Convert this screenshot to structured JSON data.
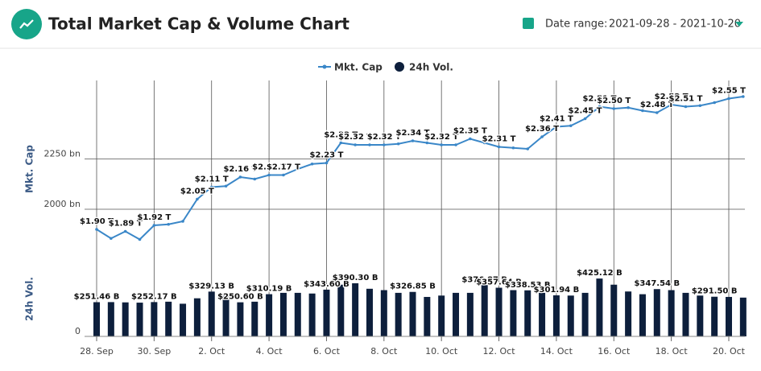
{
  "header": {
    "title": "Total Market Cap & Volume Chart",
    "date_range_label": "Date range:",
    "date_range": "2021-09-28 - 2021-10-20"
  },
  "chart_data": {
    "type": "line-bar",
    "y_label": "Mkt. Cap",
    "y2_label": "24h Vol.",
    "categories": [
      "28. Sep",
      null,
      null,
      null,
      "30. Sep",
      null,
      null,
      null,
      "2. Oct",
      null,
      null,
      null,
      "4. Oct",
      null,
      null,
      null,
      "6. Oct",
      null,
      null,
      null,
      "8. Oct",
      null,
      null,
      null,
      "10. Oct",
      null,
      null,
      null,
      "12. Oct",
      null,
      null,
      null,
      "14. Oct",
      null,
      null,
      null,
      "16. Oct",
      null,
      null,
      null,
      "18. Oct",
      null,
      null,
      null,
      "20. Oct",
      null
    ],
    "series": [
      {
        "name": "Mkt. Cap",
        "type": "line",
        "color": "#3a87c8",
        "values": [
          1900,
          1855,
          1890,
          1850,
          1920,
          1925,
          1940,
          2050,
          2110,
          2115,
          2160,
          2150,
          2170,
          2170,
          2200,
          2225,
          2230,
          2330,
          2320,
          2320,
          2320,
          2325,
          2340,
          2330,
          2320,
          2320,
          2350,
          2330,
          2310,
          2305,
          2300,
          2360,
          2410,
          2415,
          2450,
          2510,
          2500,
          2505,
          2490,
          2480,
          2520,
          2510,
          2515,
          2530,
          2550,
          2560
        ],
        "value_labels": [
          "$1.90 T",
          null,
          "$1.89 T",
          null,
          "$1.92 T",
          null,
          null,
          "$2.05 T",
          "$2.11 T",
          null,
          "$2.16 T",
          null,
          "$2.17 T",
          "$2.17 T",
          null,
          null,
          "$2.23 T",
          "$2.33 T",
          "$2.32 T",
          null,
          "$2.32 T",
          null,
          "$2.34 T",
          null,
          "$2.32 T",
          null,
          "$2.35 T",
          null,
          "$2.31 T",
          null,
          null,
          "$2.36 T",
          "$2.41 T",
          null,
          "$2.45 T",
          "$2.51 T",
          "$2.50 T",
          null,
          null,
          "$2.48 T",
          "$2.52 T",
          "$2.51 T",
          null,
          null,
          "$2.55 T",
          null
        ]
      },
      {
        "name": "24h Vol.",
        "type": "bar",
        "axis": "y2",
        "color": "#0d1f3c",
        "values": [
          251.46,
          252,
          250,
          248,
          252.17,
          255,
          240,
          280,
          329.13,
          300,
          250.6,
          255,
          310.19,
          320,
          320,
          315,
          343.6,
          380,
          390.3,
          350,
          340,
          320,
          326.85,
          290,
          300,
          320,
          320,
          376.87,
          357.64,
          340,
          338.53,
          320,
          301.94,
          300,
          320,
          425.12,
          380,
          330,
          310,
          347.54,
          340,
          320,
          300,
          291.5,
          290,
          285
        ],
        "value_labels": [
          "$251.46 B",
          null,
          null,
          null,
          "$252.17 B",
          null,
          null,
          null,
          "$329.13 B",
          null,
          "$250.60 B",
          null,
          "$310.19 B",
          null,
          null,
          null,
          "$343.60 B",
          null,
          "$390.30 B",
          null,
          null,
          null,
          "$326.85 B",
          null,
          null,
          null,
          null,
          "$376.87 B",
          "$357.64 B",
          null,
          "$338.53 B",
          null,
          "$301.94 B",
          null,
          null,
          "$425.12 B",
          null,
          null,
          null,
          "$347.54 B",
          null,
          null,
          null,
          "$291.50 B",
          null,
          null
        ]
      }
    ],
    "ylim": [
      1800,
      2600
    ],
    "yticks": [
      {
        "value": 2000,
        "label": "2000 bn"
      },
      {
        "value": 2250,
        "label": "2250 bn"
      }
    ],
    "y2lim": [
      0,
      550
    ],
    "y2ticks": [
      0
    ],
    "grid": true,
    "legend": "top"
  }
}
